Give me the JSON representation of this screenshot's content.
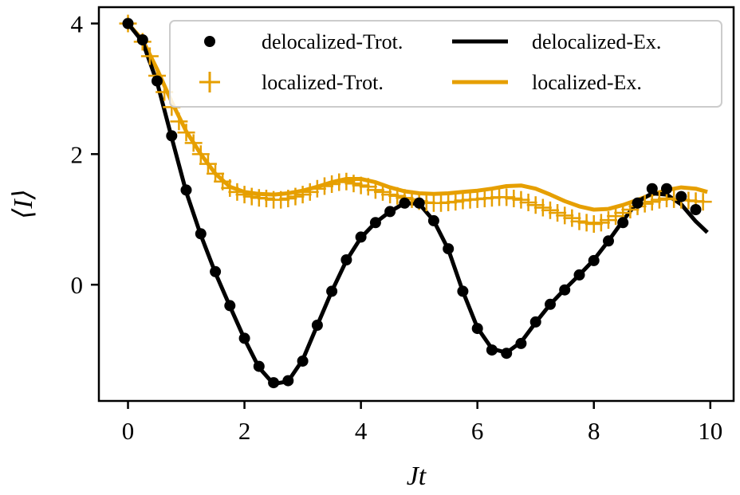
{
  "chart_data": {
    "type": "line",
    "title": "",
    "xlabel": "Jt",
    "ylabel": "⟨I⟩",
    "xlim": [
      -0.5,
      10.4
    ],
    "ylim": [
      -1.78,
      4.25
    ],
    "xticks": [
      0,
      2,
      4,
      6,
      8,
      10
    ],
    "yticks": [
      0,
      2,
      4
    ],
    "xtick_labels": [
      "0",
      "2",
      "4",
      "6",
      "8",
      "10"
    ],
    "ytick_labels": [
      "0",
      "2",
      "4"
    ],
    "grid": false,
    "legend_position": "top-right",
    "colors": {
      "delocalized": "#000000",
      "localized": "#e69f00"
    },
    "legend": [
      {
        "label": "delocalized-Trot.",
        "series": "delocalized-Trot."
      },
      {
        "label": "delocalized-Ex.",
        "series": "delocalized-Ex."
      },
      {
        "label": "localized-Trot.",
        "series": "localized-Trot."
      },
      {
        "label": "localized-Ex.",
        "series": "localized-Ex."
      }
    ],
    "series": [
      {
        "name": "delocalized-Trot.",
        "style": "dots",
        "color": "#000000",
        "x": [
          0,
          0.25,
          0.5,
          0.75,
          1.0,
          1.25,
          1.5,
          1.75,
          2.0,
          2.25,
          2.5,
          2.75,
          3.0,
          3.25,
          3.5,
          3.75,
          4.0,
          4.25,
          4.5,
          4.75,
          5.0,
          5.25,
          5.5,
          5.75,
          6.0,
          6.25,
          6.5,
          6.75,
          7.0,
          7.25,
          7.5,
          7.75,
          8.0,
          8.25,
          8.5,
          8.75,
          9.0,
          9.25,
          9.5,
          9.75
        ],
        "y": [
          4.0,
          3.75,
          3.12,
          2.28,
          1.45,
          0.78,
          0.2,
          -0.32,
          -0.82,
          -1.25,
          -1.5,
          -1.47,
          -1.17,
          -0.62,
          -0.1,
          0.38,
          0.73,
          0.95,
          1.12,
          1.25,
          1.25,
          0.98,
          0.55,
          -0.1,
          -0.67,
          -1.0,
          -1.05,
          -0.9,
          -0.57,
          -0.3,
          -0.08,
          0.15,
          0.37,
          0.67,
          0.95,
          1.25,
          1.47,
          1.47,
          1.35,
          1.15
        ]
      },
      {
        "name": "delocalized-Ex.",
        "style": "line",
        "color": "#000000",
        "x": [
          0,
          0.25,
          0.5,
          0.75,
          1.0,
          1.25,
          1.5,
          1.75,
          2.0,
          2.25,
          2.5,
          2.75,
          3.0,
          3.25,
          3.5,
          3.75,
          4.0,
          4.25,
          4.5,
          4.75,
          5.0,
          5.25,
          5.5,
          5.75,
          6.0,
          6.25,
          6.5,
          6.75,
          7.0,
          7.25,
          7.5,
          7.75,
          8.0,
          8.25,
          8.5,
          8.75,
          9.0,
          9.25,
          9.5,
          9.75,
          9.95
        ],
        "y": [
          4.0,
          3.72,
          3.1,
          2.25,
          1.42,
          0.76,
          0.18,
          -0.33,
          -0.83,
          -1.27,
          -1.52,
          -1.48,
          -1.15,
          -0.62,
          -0.1,
          0.37,
          0.72,
          0.95,
          1.12,
          1.25,
          1.24,
          0.98,
          0.54,
          -0.1,
          -0.66,
          -0.98,
          -1.04,
          -0.88,
          -0.58,
          -0.3,
          -0.07,
          0.15,
          0.38,
          0.67,
          0.98,
          1.27,
          1.4,
          1.38,
          1.23,
          0.97,
          0.8
        ]
      },
      {
        "name": "localized-Trot.",
        "style": "plus",
        "color": "#e69f00",
        "x": [
          0,
          0.25,
          0.375,
          0.5,
          0.625,
          0.75,
          0.875,
          1.0,
          1.125,
          1.25,
          1.375,
          1.5,
          1.625,
          1.75,
          1.875,
          2.0,
          2.125,
          2.25,
          2.375,
          2.5,
          2.625,
          2.75,
          2.875,
          3.0,
          3.125,
          3.25,
          3.375,
          3.5,
          3.625,
          3.75,
          3.875,
          4.0,
          4.125,
          4.25,
          4.375,
          4.5,
          4.625,
          4.75,
          4.875,
          5.0,
          5.125,
          5.25,
          5.375,
          5.5,
          5.625,
          5.75,
          5.875,
          6.0,
          6.125,
          6.25,
          6.375,
          6.5,
          6.625,
          6.75,
          6.875,
          7.0,
          7.125,
          7.25,
          7.375,
          7.5,
          7.625,
          7.75,
          7.875,
          8.0,
          8.125,
          8.25,
          8.375,
          8.5,
          8.625,
          8.75,
          8.875,
          9.0,
          9.125,
          9.25,
          9.375,
          9.5,
          9.625,
          9.75,
          9.875
        ],
        "y": [
          4.0,
          3.72,
          3.5,
          3.2,
          2.95,
          2.72,
          2.5,
          2.33,
          2.17,
          2.0,
          1.85,
          1.7,
          1.58,
          1.48,
          1.42,
          1.38,
          1.35,
          1.33,
          1.32,
          1.3,
          1.3,
          1.32,
          1.35,
          1.38,
          1.42,
          1.47,
          1.51,
          1.54,
          1.57,
          1.58,
          1.55,
          1.52,
          1.5,
          1.45,
          1.42,
          1.38,
          1.36,
          1.33,
          1.31,
          1.28,
          1.26,
          1.25,
          1.25,
          1.26,
          1.27,
          1.29,
          1.3,
          1.31,
          1.32,
          1.33,
          1.34,
          1.34,
          1.32,
          1.3,
          1.26,
          1.22,
          1.18,
          1.14,
          1.1,
          1.06,
          1.02,
          0.97,
          0.95,
          0.93,
          0.95,
          0.99,
          1.05,
          1.1,
          1.15,
          1.2,
          1.24,
          1.27,
          1.3,
          1.32,
          1.31,
          1.3,
          1.29,
          1.28,
          1.27
        ]
      },
      {
        "name": "localized-Ex.",
        "style": "line",
        "color": "#e69f00",
        "x": [
          0,
          0.25,
          0.5,
          0.75,
          1.0,
          1.25,
          1.5,
          1.75,
          2.0,
          2.25,
          2.5,
          2.75,
          3.0,
          3.25,
          3.5,
          3.75,
          4.0,
          4.25,
          4.5,
          4.75,
          5.0,
          5.25,
          5.5,
          5.75,
          6.0,
          6.25,
          6.5,
          6.75,
          7.0,
          7.25,
          7.5,
          7.75,
          8.0,
          8.25,
          8.5,
          8.75,
          9.0,
          9.25,
          9.5,
          9.75,
          9.95
        ],
        "y": [
          4.0,
          3.75,
          3.3,
          2.8,
          2.35,
          2.0,
          1.7,
          1.5,
          1.42,
          1.39,
          1.38,
          1.4,
          1.44,
          1.5,
          1.57,
          1.62,
          1.62,
          1.57,
          1.49,
          1.43,
          1.4,
          1.39,
          1.4,
          1.42,
          1.44,
          1.47,
          1.51,
          1.52,
          1.47,
          1.38,
          1.28,
          1.2,
          1.15,
          1.16,
          1.22,
          1.3,
          1.38,
          1.45,
          1.49,
          1.47,
          1.42
        ]
      }
    ]
  }
}
